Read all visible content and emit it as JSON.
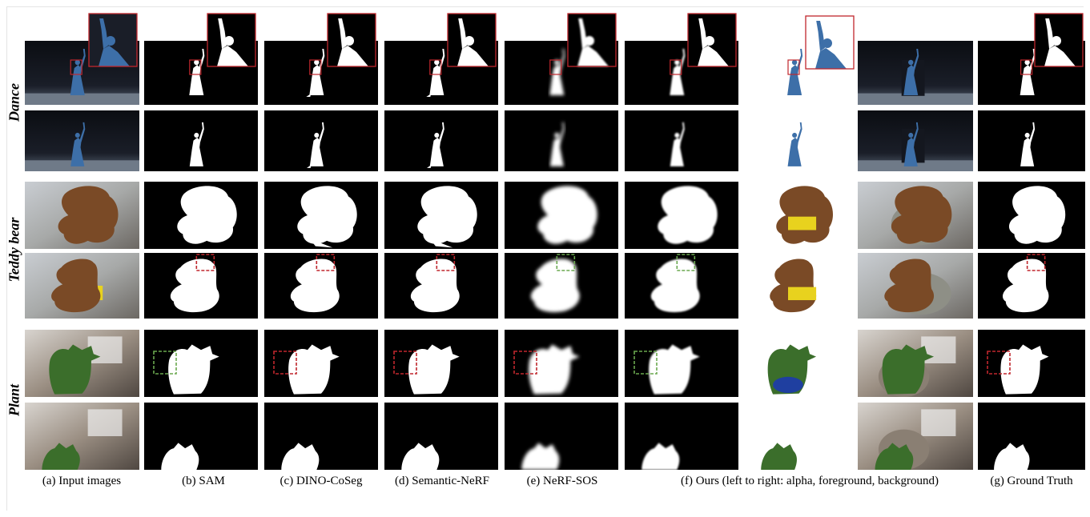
{
  "rows": [
    {
      "label": "Dance"
    },
    {
      "label": "Teddy bear"
    },
    {
      "label": "Plant"
    }
  ],
  "columns": [
    {
      "label": "(a) Input images"
    },
    {
      "label": "(b) SAM"
    },
    {
      "label": "(c) DINO-CoSeg"
    },
    {
      "label": "(d) Semantic-NeRF"
    },
    {
      "label": "(e) NeRF-SOS"
    },
    {
      "label": "(f) Ours (left to right: alpha, foreground, background)"
    },
    {
      "label": "(g) Ground Truth"
    }
  ],
  "colors": {
    "mask_bg": "#000000",
    "mask_fg": "#ffffff",
    "highlight_red": "#c0272d",
    "highlight_green": "#6aa84f"
  }
}
